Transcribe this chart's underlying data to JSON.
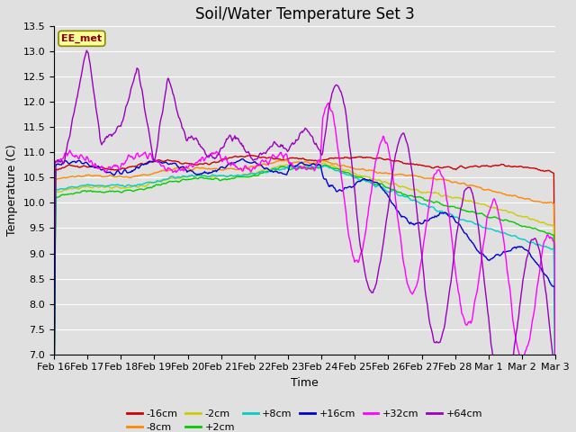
{
  "title": "Soil/Water Temperature Set 3",
  "xlabel": "Time",
  "ylabel": "Temperature (C)",
  "ylim": [
    7.0,
    13.5
  ],
  "annotation": "EE_met",
  "series": [
    {
      "label": "-16cm",
      "color": "#cc0000"
    },
    {
      "label": "-8cm",
      "color": "#ff8800"
    },
    {
      "label": "-2cm",
      "color": "#cccc00"
    },
    {
      "label": "+2cm",
      "color": "#00cc00"
    },
    {
      "label": "+8cm",
      "color": "#00cccc"
    },
    {
      "label": "+16cm",
      "color": "#0000cc"
    },
    {
      "label": "+32cm",
      "color": "#ff00ff"
    },
    {
      "label": "+64cm",
      "color": "#9900bb"
    }
  ],
  "xtick_labels": [
    "Feb 16",
    "Feb 17",
    "Feb 18",
    "Feb 19",
    "Feb 20",
    "Feb 21",
    "Feb 22",
    "Feb 23",
    "Feb 24",
    "Feb 25",
    "Feb 26",
    "Feb 27",
    "Feb 28",
    "Mar 1",
    "Mar 2",
    "Mar 3"
  ],
  "bg_color": "#e0e0e0",
  "grid_color": "#ffffff",
  "title_fontsize": 12,
  "axis_fontsize": 9,
  "tick_fontsize": 8,
  "yticks": [
    7.0,
    7.5,
    8.0,
    8.5,
    9.0,
    9.5,
    10.0,
    10.5,
    11.0,
    11.5,
    12.0,
    12.5,
    13.0,
    13.5
  ]
}
